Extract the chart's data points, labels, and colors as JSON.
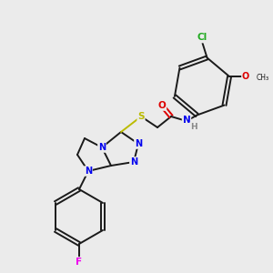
{
  "background_color": "#ebebeb",
  "bond_color": "#1a1a1a",
  "atom_colors": {
    "N": "#0000EE",
    "O": "#DD0000",
    "S": "#BBBB00",
    "F": "#EE00EE",
    "Cl": "#22AA22",
    "H": "#888888",
    "C": "#1a1a1a"
  },
  "figsize": [
    3.0,
    3.0
  ],
  "dpi": 100
}
